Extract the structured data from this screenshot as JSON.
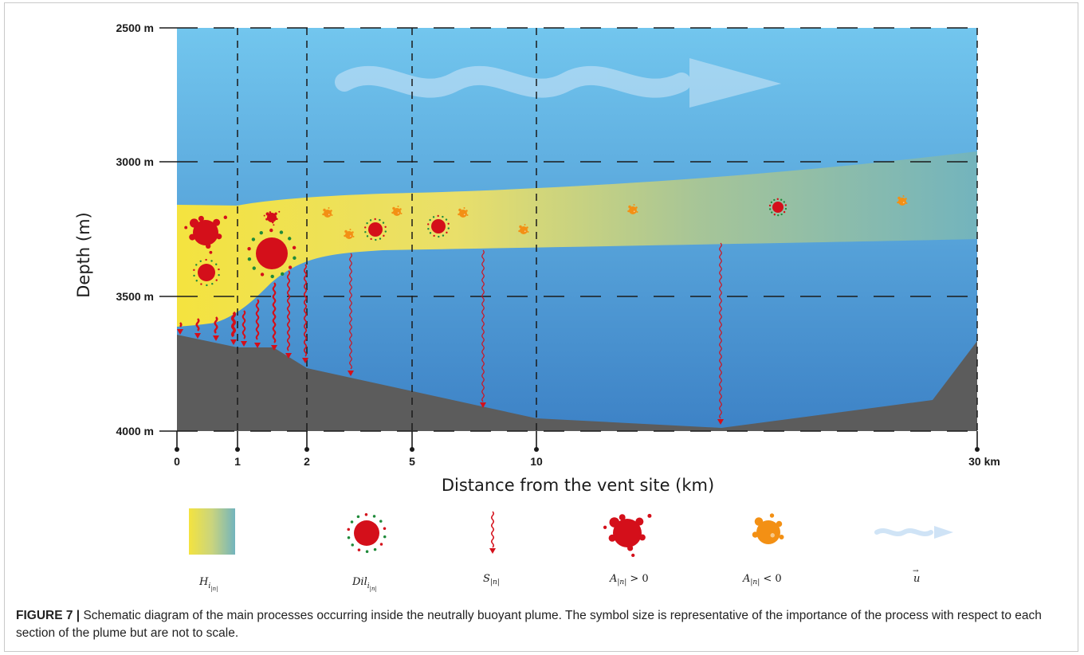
{
  "axes": {
    "y_title": "Depth (m)",
    "y_ticks": [
      "2500 m",
      "3000 m",
      "3500 m",
      "4000 m"
    ],
    "x_title": "Distance from the vent site (km)",
    "x_ticks": [
      "0",
      "1",
      "2",
      "5",
      "10",
      "30 km"
    ]
  },
  "legend": {
    "items": [
      {
        "symbol": "plume-gradient",
        "label_base": "H",
        "label_sub": "i",
        "label_subsub": "|n|"
      },
      {
        "symbol": "dilution-particle",
        "label_base": "Dil",
        "label_sub": "i",
        "label_subsub": "|n|"
      },
      {
        "symbol": "settling-arrow",
        "label_base": "S",
        "label_sub": "|n|",
        "label_subsub": ""
      },
      {
        "symbol": "positive-aggregation",
        "label_base": "A",
        "label_sub": "|n|",
        "label_suffix": " > 0"
      },
      {
        "symbol": "negative-aggregation",
        "label_base": "A",
        "label_sub": "|n|",
        "label_suffix": " < 0"
      },
      {
        "symbol": "current-arrow",
        "label_base": "u",
        "label_sub": "",
        "label_subsub": ""
      }
    ]
  },
  "caption": {
    "label": "FIGURE 7 |",
    "text": " Schematic diagram of the main processes occurring inside the neutrally buoyant plume. The symbol size is representative of the importance of the process with respect to each section of the plume but are not to scale."
  },
  "colors": {
    "ocean_top": "#6fc3ec",
    "ocean_bottom": "#3f86c9",
    "seafloor": "#5e5e5e",
    "plume_yellow": "#f2e34b",
    "plume_teal": "#6fb6c0",
    "particle_red": "#d40f1a",
    "particle_orange": "#f39014",
    "dilution_green": "#1f8a3a"
  }
}
